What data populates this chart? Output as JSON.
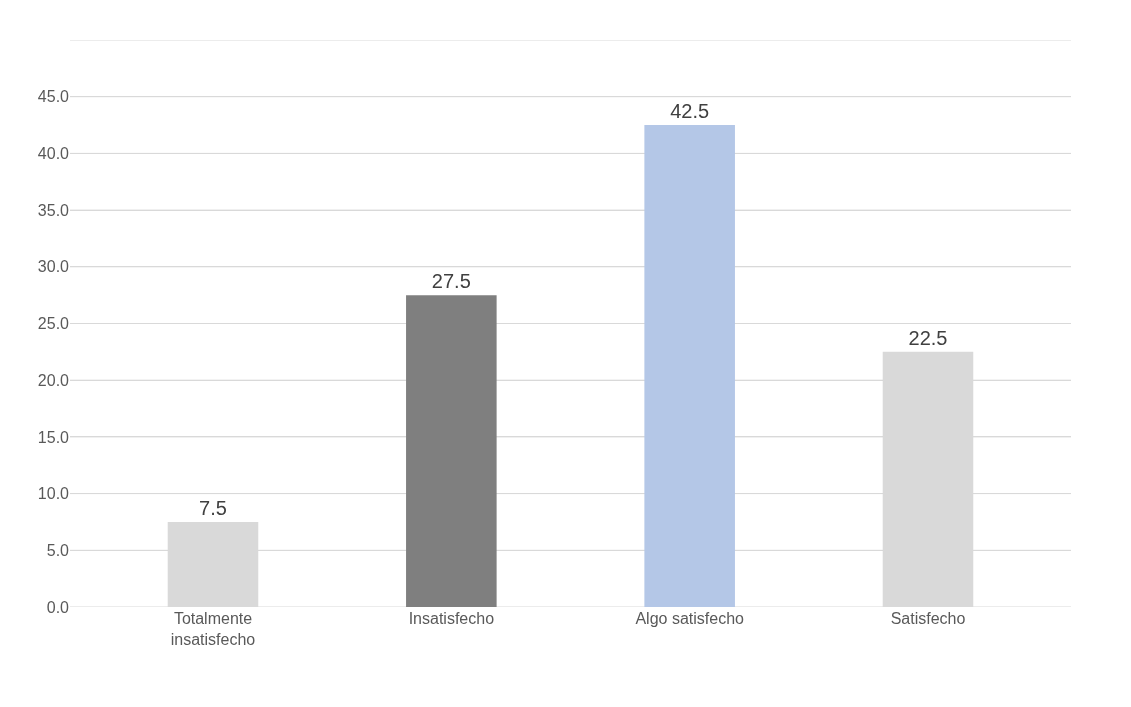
{
  "chart_data": {
    "type": "bar",
    "categories": [
      "Totalmente insatisfecho",
      "Insatisfecho",
      "Algo satisfecho",
      "Satisfecho"
    ],
    "values": [
      7.5,
      27.5,
      42.5,
      22.5
    ],
    "colors": [
      "#d9d9d9",
      "#7f7f7f",
      "#b4c7e7",
      "#d9d9d9"
    ],
    "ylim": [
      0,
      50
    ],
    "yticks": [
      {
        "value": 0,
        "label": "0.0"
      },
      {
        "value": 5,
        "label": "5.0"
      },
      {
        "value": 10,
        "label": "10.0"
      },
      {
        "value": 15,
        "label": "15.0"
      },
      {
        "value": 20,
        "label": "20.0"
      },
      {
        "value": 25,
        "label": "25.0"
      },
      {
        "value": 30,
        "label": "30.0"
      },
      {
        "value": 35,
        "label": "35.0"
      },
      {
        "value": 40,
        "label": "40.0"
      },
      {
        "value": 45,
        "label": "45.0"
      },
      {
        "value": 50,
        "label": null
      }
    ],
    "grid": "y",
    "data_labels": true
  }
}
